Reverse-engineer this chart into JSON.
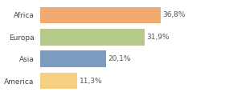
{
  "categories": [
    "Africa",
    "Europa",
    "Asia",
    "America"
  ],
  "values": [
    36.8,
    31.9,
    20.1,
    11.3
  ],
  "labels": [
    "36,8%",
    "31,9%",
    "20,1%",
    "11,3%"
  ],
  "bar_colors": [
    "#f0a96e",
    "#b5c98a",
    "#7b9bbf",
    "#f5d080"
  ],
  "xlim": [
    0,
    44
  ],
  "background_color": "#ffffff",
  "label_fontsize": 6.5,
  "tick_fontsize": 6.5
}
